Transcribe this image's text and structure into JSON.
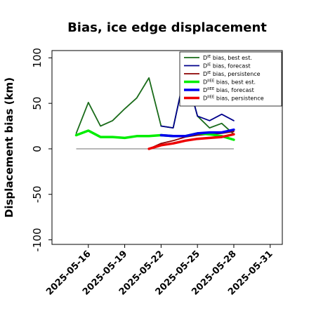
{
  "chart_data": {
    "type": "line",
    "title": "Bias, ice edge displacement",
    "xlabel": "",
    "ylabel": "Displacement bias (km)",
    "ylim": [
      -105,
      108
    ],
    "xlim": [
      "2025-05-13",
      "2025-06-01"
    ],
    "yticks": [
      100,
      50,
      0,
      -50,
      -100
    ],
    "xticks": [
      {
        "date": "2025-05-16",
        "label": "2025-05-16",
        "color": "#000000"
      },
      {
        "date": "2025-05-19",
        "label": "2025-05-19",
        "color": "#000000"
      },
      {
        "date": "2025-05-22",
        "label": "2025-05-22",
        "color": "#1a8a1a"
      },
      {
        "date": "2025-05-25",
        "label": "2025-05-25",
        "color": "#000000"
      },
      {
        "date": "2025-05-28",
        "label": "2025-05-28",
        "color": "#000000"
      },
      {
        "date": "2025-05-31",
        "label": "2025-05-31",
        "color": "#000000"
      }
    ],
    "zero_line": {
      "y": 0,
      "from": "2025-05-15",
      "to": "2025-05-28",
      "color": "#808080"
    },
    "legend_position": "top-right",
    "grid": false,
    "series": [
      {
        "name": "D^IE bias, best est.",
        "legend_main": "D",
        "legend_sup": "IE",
        "legend_rest": " bias, best est.",
        "color": "#1a6b1a",
        "width": 1.8,
        "points": [
          [
            "2025-05-15",
            17
          ],
          [
            "2025-05-16",
            51
          ],
          [
            "2025-05-17",
            25
          ],
          [
            "2025-05-18",
            31
          ],
          [
            "2025-05-19",
            44
          ],
          [
            "2025-05-20",
            56
          ],
          [
            "2025-05-21",
            78
          ],
          [
            "2025-05-22",
            25
          ],
          [
            "2025-05-23",
            23
          ],
          [
            "2025-05-24",
            85
          ],
          [
            "2025-05-25",
            36
          ],
          [
            "2025-05-26",
            23
          ],
          [
            "2025-05-27",
            28
          ],
          [
            "2025-05-28",
            16
          ]
        ]
      },
      {
        "name": "D^IE bias, forecast",
        "legend_main": "D",
        "legend_sup": "IE",
        "legend_rest": " bias, forecast",
        "color": "#00008b",
        "width": 1.8,
        "points": [
          [
            "2025-05-22",
            25
          ],
          [
            "2025-05-23",
            23
          ],
          [
            "2025-05-24",
            85
          ],
          [
            "2025-05-25",
            36
          ],
          [
            "2025-05-26",
            31
          ],
          [
            "2025-05-27",
            38
          ],
          [
            "2025-05-28",
            31
          ]
        ]
      },
      {
        "name": "D^IE bias, persistence",
        "legend_main": "D",
        "legend_sup": "IE",
        "legend_rest": " bias, persistence",
        "color": "#8b0000",
        "width": 1.8,
        "points": [
          [
            "2025-05-21",
            0
          ],
          [
            "2025-05-22",
            6
          ],
          [
            "2025-05-23",
            9
          ],
          [
            "2025-05-24",
            13
          ],
          [
            "2025-05-25",
            15
          ],
          [
            "2025-05-26",
            16
          ],
          [
            "2025-05-27",
            17
          ],
          [
            "2025-05-28",
            19
          ]
        ]
      },
      {
        "name": "D^IIEE bias, best est.",
        "legend_main": "D",
        "legend_sup": "IIEE",
        "legend_rest": " bias, best est.",
        "color": "#00ee00",
        "width": 3.5,
        "points": [
          [
            "2025-05-15",
            15
          ],
          [
            "2025-05-16",
            20
          ],
          [
            "2025-05-17",
            13
          ],
          [
            "2025-05-18",
            13
          ],
          [
            "2025-05-19",
            12
          ],
          [
            "2025-05-20",
            14
          ],
          [
            "2025-05-21",
            14
          ],
          [
            "2025-05-22",
            15
          ],
          [
            "2025-05-23",
            14
          ],
          [
            "2025-05-24",
            14
          ],
          [
            "2025-05-25",
            17
          ],
          [
            "2025-05-26",
            16
          ],
          [
            "2025-05-27",
            14
          ],
          [
            "2025-05-28",
            10
          ]
        ]
      },
      {
        "name": "D^IIEE bias, forecast",
        "legend_main": "D",
        "legend_sup": "IIEE",
        "legend_rest": " bias, forecast",
        "color": "#0000ee",
        "width": 3.5,
        "points": [
          [
            "2025-05-22",
            15
          ],
          [
            "2025-05-23",
            14
          ],
          [
            "2025-05-24",
            14
          ],
          [
            "2025-05-25",
            17
          ],
          [
            "2025-05-26",
            18
          ],
          [
            "2025-05-27",
            18
          ],
          [
            "2025-05-28",
            21
          ]
        ]
      },
      {
        "name": "D^IIEE bias, persistence",
        "legend_main": "D",
        "legend_sup": "IIEE",
        "legend_rest": " bias, persistence",
        "color": "#ee0000",
        "width": 3.5,
        "points": [
          [
            "2025-05-21",
            0
          ],
          [
            "2025-05-22",
            4
          ],
          [
            "2025-05-23",
            6
          ],
          [
            "2025-05-24",
            9
          ],
          [
            "2025-05-25",
            11
          ],
          [
            "2025-05-26",
            12
          ],
          [
            "2025-05-27",
            13
          ],
          [
            "2025-05-28",
            16
          ]
        ]
      }
    ]
  }
}
